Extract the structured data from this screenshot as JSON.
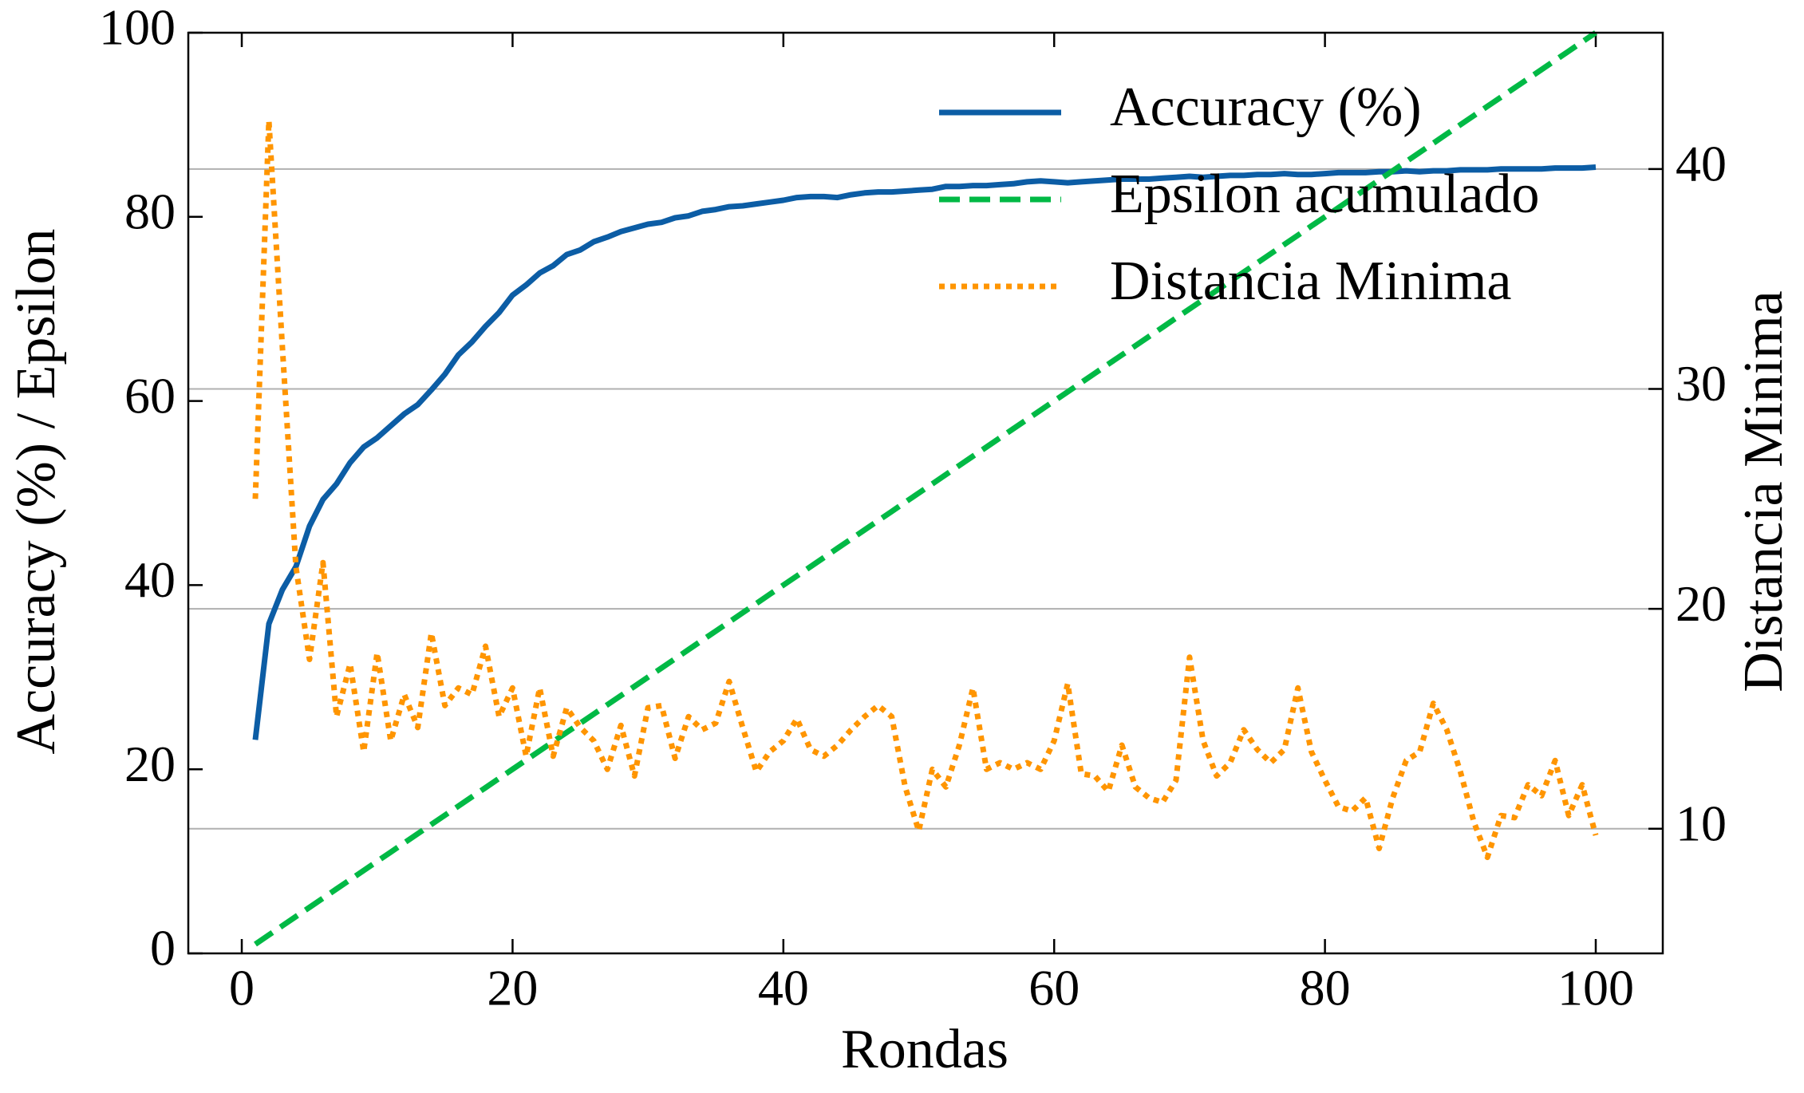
{
  "chart_data": {
    "type": "line",
    "x_label": "Rondas",
    "y_label": "Accuracy (%) / Epsilon",
    "y2_label": "Distancia Minima",
    "x": [
      1,
      2,
      3,
      4,
      5,
      6,
      7,
      8,
      9,
      10,
      11,
      12,
      13,
      14,
      15,
      16,
      17,
      18,
      19,
      20,
      21,
      22,
      23,
      24,
      25,
      26,
      27,
      28,
      29,
      30,
      31,
      32,
      33,
      34,
      35,
      36,
      37,
      38,
      39,
      40,
      41,
      42,
      43,
      44,
      45,
      46,
      47,
      48,
      49,
      50,
      51,
      52,
      53,
      54,
      55,
      56,
      57,
      58,
      59,
      60,
      61,
      62,
      63,
      64,
      65,
      66,
      67,
      68,
      69,
      70,
      71,
      72,
      73,
      74,
      75,
      76,
      77,
      78,
      79,
      80,
      81,
      82,
      83,
      84,
      85,
      86,
      87,
      88,
      89,
      90,
      91,
      92,
      93,
      94,
      95,
      96,
      97,
      98,
      99,
      100
    ],
    "series": [
      {
        "name": "Accuracy (%)",
        "color": "#0c5da5",
        "dash": "solid",
        "axis": "y",
        "values": [
          23.2,
          35.8,
          39.5,
          42,
          46.4,
          49.3,
          51,
          53.3,
          55,
          56,
          57.3,
          58.6,
          59.6,
          61.2,
          62.9,
          65,
          66.4,
          68.1,
          69.6,
          71.5,
          72.6,
          73.9,
          74.7,
          75.9,
          76.4,
          77.3,
          77.8,
          78.4,
          78.8,
          79.2,
          79.4,
          79.9,
          80.1,
          80.6,
          80.8,
          81.1,
          81.2,
          81.4,
          81.6,
          81.8,
          82.1,
          82.2,
          82.2,
          82.1,
          82.4,
          82.6,
          82.7,
          82.7,
          82.8,
          82.9,
          83.0,
          83.3,
          83.3,
          83.4,
          83.4,
          83.5,
          83.6,
          83.8,
          83.9,
          83.8,
          83.7,
          83.8,
          83.9,
          84.0,
          84.1,
          84.1,
          84.1,
          84.2,
          84.3,
          84.4,
          84.3,
          84.4,
          84.5,
          84.5,
          84.6,
          84.6,
          84.7,
          84.6,
          84.6,
          84.7,
          84.8,
          84.8,
          84.8,
          84.9,
          84.9,
          85.0,
          84.9,
          85.0,
          85.0,
          85.1,
          85.1,
          85.1,
          85.2,
          85.2,
          85.2,
          85.2,
          85.3,
          85.3,
          85.3,
          85.4
        ]
      },
      {
        "name": "Epsilon acumulado",
        "color": "#00b945",
        "dash": "dashed",
        "axis": "y",
        "values": [
          1,
          2,
          3,
          4,
          5,
          6,
          7,
          8,
          9,
          10,
          11,
          12,
          13,
          14,
          15,
          16,
          17,
          18,
          19,
          20,
          21,
          22,
          23,
          24,
          25,
          26,
          27,
          28,
          29,
          30,
          31,
          32,
          33,
          34,
          35,
          36,
          37,
          38,
          39,
          40,
          41,
          42,
          43,
          44,
          45,
          46,
          47,
          48,
          49,
          50,
          51,
          52,
          53,
          54,
          55,
          56,
          57,
          58,
          59,
          60,
          61,
          62,
          63,
          64,
          65,
          66,
          67,
          68,
          69,
          70,
          71,
          72,
          73,
          74,
          75,
          76,
          77,
          78,
          79,
          80,
          81,
          82,
          83,
          84,
          85,
          86,
          87,
          88,
          89,
          90,
          91,
          92,
          93,
          94,
          95,
          96,
          97,
          98,
          99,
          100
        ]
      },
      {
        "name": "Distancia Minima",
        "color": "#ff9500",
        "dash": "dotted",
        "axis": "y2",
        "values": [
          25,
          42.2,
          31.9,
          21.9,
          17.7,
          22.1,
          15.1,
          17.5,
          13.5,
          18,
          14,
          16.1,
          14.6,
          18.9,
          15.6,
          16.4,
          16.1,
          18.3,
          15.1,
          16.4,
          13.3,
          16.4,
          13.3,
          15.5,
          14.6,
          14,
          12.7,
          14.7,
          12.4,
          15.5,
          15.6,
          13.2,
          15.1,
          14.5,
          14.8,
          16.7,
          14.6,
          12.6,
          13.5,
          14,
          15,
          13.6,
          13.3,
          13.8,
          14.5,
          15.1,
          15.6,
          15.1,
          11.9,
          9.9,
          12.7,
          11.9,
          13.8,
          16.4,
          12.7,
          13,
          12.7,
          13,
          12.7,
          14,
          16.6,
          12.5,
          12.4,
          11.7,
          13.8,
          11.9,
          11.4,
          11.2,
          12.2,
          17.8,
          14,
          12.4,
          13,
          14.5,
          13.6,
          13,
          13.6,
          16.4,
          13.5,
          12.2,
          11,
          10.8,
          11.4,
          9.1,
          11.4,
          13.1,
          13.5,
          15.7,
          14.5,
          12.6,
          10.3,
          8.7,
          10.6,
          10.5,
          12,
          11.5,
          13.1,
          10.6,
          12,
          9.7
        ]
      }
    ],
    "xlim": [
      -3.95,
      104.95
    ],
    "xticks": [
      0,
      20,
      40,
      60,
      80,
      100
    ],
    "ylim": [
      0,
      100
    ],
    "yticks": [
      0,
      20,
      40,
      60,
      80,
      100
    ],
    "y2lim": [
      4.33,
      46.2
    ],
    "y2ticks": [
      10,
      20,
      30,
      40
    ],
    "grid": "y2",
    "legend": "upper right"
  }
}
